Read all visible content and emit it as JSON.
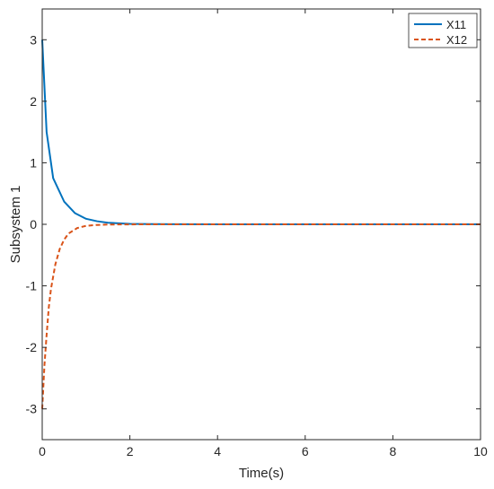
{
  "chart_data": {
    "type": "line",
    "title": "",
    "xlabel": "Time(s)",
    "ylabel": "Subsystem 1",
    "xlim": [
      0,
      10
    ],
    "ylim": [
      -3.5,
      3.5
    ],
    "xticks": [
      0,
      2,
      4,
      6,
      8,
      10
    ],
    "yticks": [
      -3,
      -2,
      -1,
      0,
      1,
      2,
      3
    ],
    "xtick_labels": [
      "0",
      "2",
      "4",
      "6",
      "8",
      "10"
    ],
    "ytick_labels": [
      "-3",
      "-2",
      "-1",
      "0",
      "1",
      "2",
      "3"
    ],
    "grid": false,
    "legend_position": "top-right",
    "series": [
      {
        "name": "X11",
        "color": "#0072BD",
        "line_style": "solid",
        "x": [
          0,
          0.1,
          0.25,
          0.5,
          0.75,
          1.0,
          1.25,
          1.5,
          2.0,
          2.5,
          3,
          4,
          5,
          6,
          7,
          8,
          9,
          10
        ],
        "y": [
          3.0,
          1.5,
          0.75,
          0.37,
          0.18,
          0.09,
          0.05,
          0.025,
          0.008,
          0.003,
          0.001,
          0,
          0,
          0,
          0,
          0,
          0,
          0
        ]
      },
      {
        "name": "X12",
        "color": "#D95319",
        "line_style": "dashed",
        "x": [
          0,
          0.05,
          0.1,
          0.15,
          0.2,
          0.3,
          0.4,
          0.5,
          0.6,
          0.8,
          1.0,
          1.25,
          1.5,
          2.0,
          3,
          4,
          5,
          6,
          7,
          8,
          9,
          10
        ],
        "y": [
          -3.0,
          -2.3,
          -1.8,
          -1.35,
          -1.05,
          -0.65,
          -0.4,
          -0.25,
          -0.15,
          -0.06,
          -0.025,
          -0.01,
          -0.004,
          -0.001,
          0,
          0,
          0,
          0,
          0,
          0,
          0,
          0
        ]
      }
    ]
  }
}
